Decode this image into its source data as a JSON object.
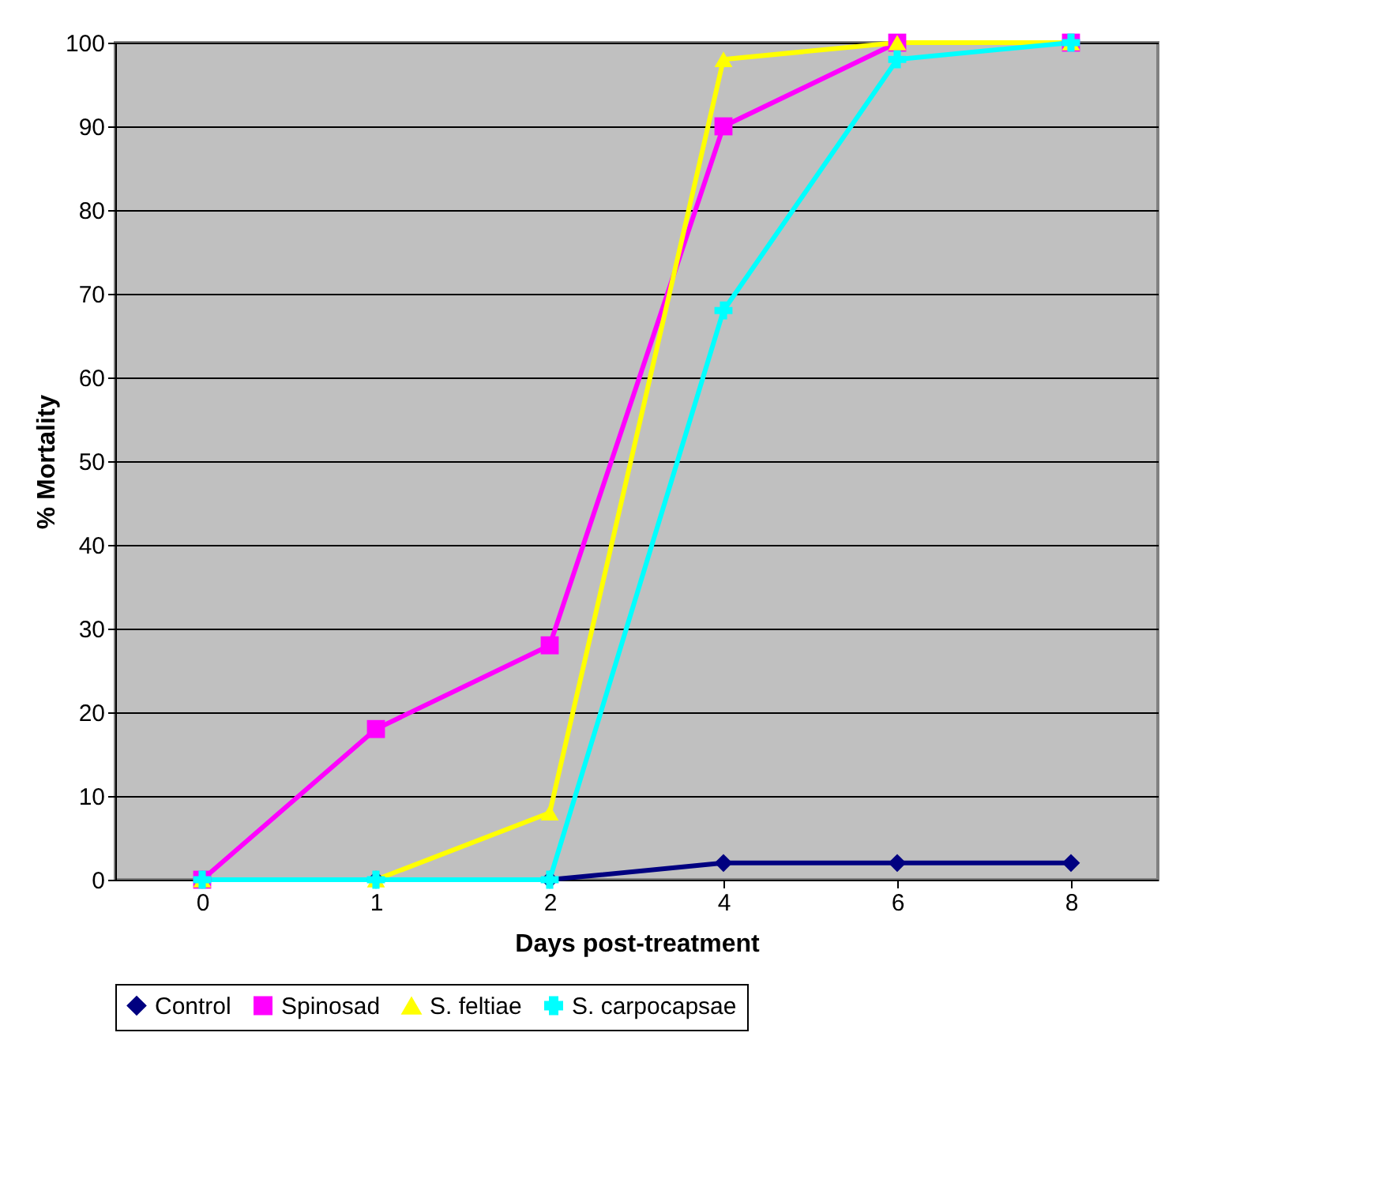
{
  "chart_data": {
    "type": "line",
    "xlabel": "Days post-treatment",
    "ylabel": "% Mortality",
    "categories": [
      "0",
      "1",
      "2",
      "4",
      "6",
      "8"
    ],
    "series": [
      {
        "name": "Control",
        "color": "#000080",
        "marker": "diamond",
        "values": [
          0,
          0,
          0,
          2,
          2,
          2
        ]
      },
      {
        "name": "Spinosad",
        "color": "#ff00ff",
        "marker": "square",
        "values": [
          0,
          18,
          28,
          90,
          100,
          100
        ]
      },
      {
        "name": "S. feltiae",
        "color": "#ffff00",
        "marker": "triangle",
        "values": [
          0,
          0,
          8,
          98,
          100,
          100
        ]
      },
      {
        "name": "S. carpocapsae",
        "color": "#00ffff",
        "marker": "cross",
        "values": [
          0,
          0,
          0,
          68,
          98,
          100
        ]
      }
    ],
    "ylim": [
      0,
      100
    ],
    "yticks": [
      0,
      10,
      20,
      30,
      40,
      50,
      60,
      70,
      80,
      90,
      100
    ],
    "grid": "y",
    "legend": "bottom",
    "line_style": "solid"
  }
}
